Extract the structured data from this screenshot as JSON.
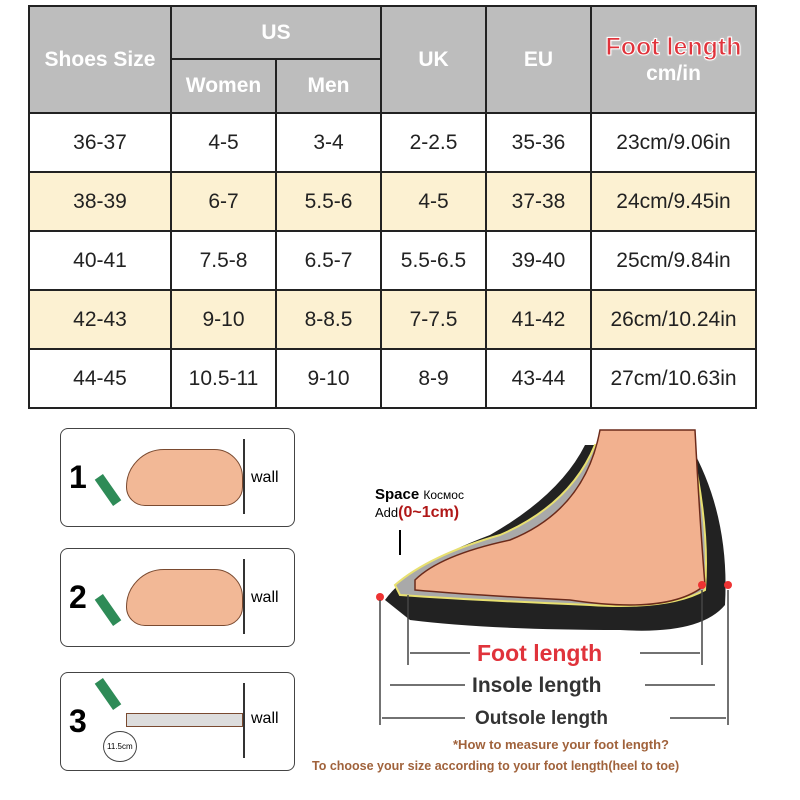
{
  "table": {
    "headers": {
      "size": "Shoes Size",
      "us": "US",
      "women": "Women",
      "men": "Men",
      "uk": "UK",
      "eu": "EU",
      "foot": "Foot length",
      "unit": "cm/in"
    },
    "rows": [
      [
        "36-37",
        "4-5",
        "3-4",
        "2-2.5",
        "35-36",
        "23cm/9.06in"
      ],
      [
        "38-39",
        "6-7",
        "5.5-6",
        "4-5",
        "37-38",
        "24cm/9.45in"
      ],
      [
        "40-41",
        "7.5-8",
        "6.5-7",
        "5.5-6.5",
        "39-40",
        "25cm/9.84in"
      ],
      [
        "42-43",
        "9-10",
        "8-8.5",
        "7-7.5",
        "41-42",
        "26cm/10.24in"
      ],
      [
        "44-45",
        "10.5-11",
        "9-10",
        "8-9",
        "43-44",
        "27cm/10.63in"
      ]
    ]
  },
  "steps": [
    {
      "n": "1",
      "wall": "wall"
    },
    {
      "n": "2",
      "wall": "wall"
    },
    {
      "n": "3",
      "wall": "wall",
      "ruler": "11.5cm"
    }
  ],
  "diagram": {
    "space": "Space",
    "space_ru": "Космос",
    "add": "Add",
    "add_range": "(0~1cm)",
    "foot": "Foot length",
    "insole": "Insole length",
    "outsole": "Outsole length"
  },
  "notes": {
    "how": "*How to measure your foot length?",
    "choose": "To choose your size according to your foot length(heel to toe)"
  }
}
